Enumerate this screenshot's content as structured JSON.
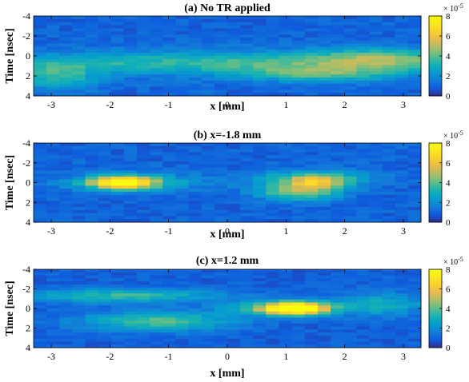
{
  "chart_data": [
    {
      "type": "heatmap",
      "title": "(a) No TR applied",
      "xlabel": "x [mm]",
      "ylabel": "Time [nsec]",
      "xlim": [
        -3.3,
        3.3
      ],
      "ylim": [
        -4,
        4
      ],
      "y_reversed": true,
      "x_ticks": [
        -3,
        -2,
        -1,
        0,
        1,
        2,
        3
      ],
      "y_ticks": [
        -4,
        -2,
        0,
        2,
        4
      ],
      "colorbar": {
        "min": 0,
        "max": 8,
        "ticks": [
          0,
          2,
          4,
          6,
          8
        ],
        "exponent": "× 10^-5",
        "colormap": "parula"
      },
      "description_of_values": "broad band of weak signal around time 0 to 2 across x",
      "hotspots": [
        {
          "x": -0.2,
          "t": 0.7,
          "level": 2.6,
          "sx": 3.2,
          "st": 0.8
        },
        {
          "x": 1.6,
          "t": 1.8,
          "level": 2.4,
          "sx": 1.0,
          "st": 0.6
        },
        {
          "x": -2.9,
          "t": 2.2,
          "level": 2.3,
          "sx": 0.5,
          "st": 0.9
        },
        {
          "x": 2.6,
          "t": 0.2,
          "level": 2.5,
          "sx": 0.8,
          "st": 0.7
        }
      ],
      "base_level": 1.0,
      "seed": 11
    },
    {
      "type": "heatmap",
      "title": "(b) x=-1.8 mm",
      "xlabel": "x [mm]",
      "ylabel": "Time [nsec]",
      "xlim": [
        -3.3,
        3.3
      ],
      "ylim": [
        -4,
        4
      ],
      "y_reversed": true,
      "x_ticks": [
        -3,
        -2,
        -1,
        0,
        1,
        2,
        3
      ],
      "y_ticks": [
        -4,
        -2,
        0,
        2,
        4
      ],
      "colorbar": {
        "min": 0,
        "max": 8,
        "ticks": [
          0,
          2,
          4,
          6,
          8
        ],
        "exponent": "× 10^-5",
        "colormap": "parula"
      },
      "description_of_values": "bright focus near x = -1.8 mm at time 0",
      "hotspots": [
        {
          "x": -1.8,
          "t": 0.0,
          "level": 6.4,
          "sx": 0.35,
          "st": 0.45
        },
        {
          "x": -1.6,
          "t": 0.0,
          "level": 2.5,
          "sx": 0.8,
          "st": 0.6
        },
        {
          "x": 1.5,
          "t": 0.1,
          "level": 3.6,
          "sx": 0.4,
          "st": 0.5
        },
        {
          "x": 1.2,
          "t": 1.0,
          "level": 3.2,
          "sx": 0.5,
          "st": 0.6
        },
        {
          "x": 1.5,
          "t": -0.5,
          "level": 2.6,
          "sx": 0.7,
          "st": 0.5
        }
      ],
      "base_level": 1.0,
      "seed": 23
    },
    {
      "type": "heatmap",
      "title": "(c) x=1.2 mm",
      "xlabel": "x [mm]",
      "ylabel": "Time [nsec]",
      "xlim": [
        -3.3,
        3.3
      ],
      "ylim": [
        -4,
        4
      ],
      "y_reversed": true,
      "x_ticks": [
        -3,
        -2,
        -1,
        0,
        1,
        2,
        3
      ],
      "y_ticks": [
        -4,
        -2,
        0,
        2,
        4
      ],
      "colorbar": {
        "min": 0,
        "max": 8,
        "ticks": [
          0,
          2,
          4,
          6,
          8
        ],
        "exponent": "× 10^-5",
        "colormap": "parula"
      },
      "description_of_values": "bright focus near x = 1.2 mm at time 0",
      "hotspots": [
        {
          "x": 1.2,
          "t": 0.0,
          "level": 7.8,
          "sx": 0.35,
          "st": 0.45
        },
        {
          "x": 0.8,
          "t": 0.0,
          "level": 3.0,
          "sx": 0.6,
          "st": 0.5
        },
        {
          "x": -1.2,
          "t": 1.3,
          "level": 3.0,
          "sx": 0.9,
          "st": 0.7
        },
        {
          "x": -1.8,
          "t": -1.3,
          "level": 2.7,
          "sx": 1.2,
          "st": 0.5
        },
        {
          "x": 2.6,
          "t": -0.4,
          "level": 2.2,
          "sx": 0.6,
          "st": 0.8
        }
      ],
      "base_level": 0.9,
      "seed": 37
    }
  ]
}
